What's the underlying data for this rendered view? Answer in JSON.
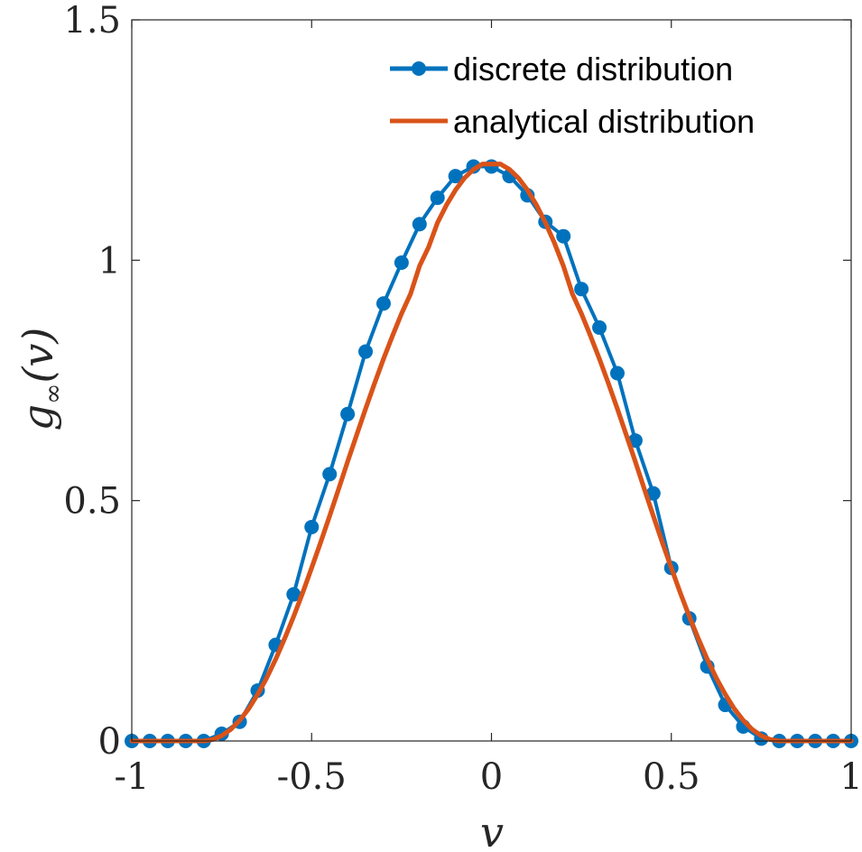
{
  "chart_data": {
    "type": "line",
    "title": "",
    "xlabel": "v",
    "ylabel_main": "g",
    "ylabel_sub": "∞",
    "ylabel_rest": "(v)",
    "xlim": [
      -1,
      1
    ],
    "ylim": [
      0,
      1.5
    ],
    "xticks": [
      -1,
      -0.5,
      0,
      0.5,
      1
    ],
    "xtick_labels": [
      "-1",
      "-0.5",
      "0",
      "0.5",
      "1"
    ],
    "yticks": [
      0,
      0.5,
      1,
      1.5
    ],
    "ytick_labels": [
      "0",
      "0.5",
      "1",
      "1.5"
    ],
    "grid": false,
    "legend_position": "top-right",
    "series": [
      {
        "name": "discrete distribution",
        "style": "line-with-markers",
        "color": "#0072BD",
        "x": [
          -1.0,
          -0.95,
          -0.9,
          -0.85,
          -0.8,
          -0.75,
          -0.7,
          -0.65,
          -0.6,
          -0.55,
          -0.5,
          -0.45,
          -0.4,
          -0.35,
          -0.3,
          -0.25,
          -0.2,
          -0.15,
          -0.1,
          -0.05,
          0.0,
          0.05,
          0.1,
          0.15,
          0.2,
          0.25,
          0.3,
          0.35,
          0.4,
          0.45,
          0.5,
          0.55,
          0.6,
          0.65,
          0.7,
          0.75,
          0.8,
          0.85,
          0.9,
          0.95,
          1.0
        ],
        "values": [
          0.0,
          0.0,
          0.0,
          0.0,
          0.0,
          0.015,
          0.04,
          0.105,
          0.2,
          0.305,
          0.445,
          0.555,
          0.68,
          0.81,
          0.91,
          0.995,
          1.075,
          1.13,
          1.175,
          1.195,
          1.195,
          1.175,
          1.135,
          1.08,
          1.05,
          0.94,
          0.86,
          0.765,
          0.625,
          0.515,
          0.36,
          0.255,
          0.155,
          0.075,
          0.03,
          0.005,
          0.0,
          0.0,
          0.0,
          0.0,
          0.0
        ]
      },
      {
        "name": "analytical distribution",
        "style": "line",
        "color": "#D95319",
        "x": [
          -1.0,
          -0.95,
          -0.9,
          -0.85,
          -0.8,
          -0.775,
          -0.75,
          -0.725,
          -0.7,
          -0.675,
          -0.65,
          -0.625,
          -0.6,
          -0.575,
          -0.55,
          -0.525,
          -0.5,
          -0.475,
          -0.45,
          -0.425,
          -0.4,
          -0.375,
          -0.35,
          -0.325,
          -0.3,
          -0.275,
          -0.25,
          -0.225,
          -0.2,
          -0.175,
          -0.15,
          -0.125,
          -0.1,
          -0.075,
          -0.05,
          -0.025,
          0.0,
          0.025,
          0.05,
          0.075,
          0.1,
          0.125,
          0.15,
          0.175,
          0.2,
          0.225,
          0.25,
          0.275,
          0.3,
          0.325,
          0.35,
          0.375,
          0.4,
          0.425,
          0.45,
          0.475,
          0.5,
          0.525,
          0.55,
          0.575,
          0.6,
          0.625,
          0.65,
          0.675,
          0.7,
          0.725,
          0.75,
          0.775,
          0.8,
          0.85,
          0.9,
          0.95,
          1.0
        ],
        "values": [
          0.0,
          0.0,
          0.0,
          0.0,
          0.0,
          0.003,
          0.011,
          0.024,
          0.043,
          0.067,
          0.097,
          0.131,
          0.17,
          0.213,
          0.259,
          0.308,
          0.36,
          0.413,
          0.468,
          0.524,
          0.581,
          0.636,
          0.691,
          0.744,
          0.795,
          0.843,
          0.889,
          0.93,
          0.988,
          1.027,
          1.078,
          1.115,
          1.146,
          1.171,
          1.189,
          1.2,
          1.2,
          1.2,
          1.189,
          1.171,
          1.146,
          1.115,
          1.078,
          1.036,
          0.988,
          0.93,
          0.889,
          0.843,
          0.795,
          0.744,
          0.691,
          0.636,
          0.581,
          0.524,
          0.468,
          0.413,
          0.36,
          0.308,
          0.259,
          0.213,
          0.17,
          0.131,
          0.097,
          0.067,
          0.043,
          0.024,
          0.011,
          0.003,
          0.0,
          0.0,
          0.0,
          0.0,
          0.0
        ]
      }
    ]
  }
}
